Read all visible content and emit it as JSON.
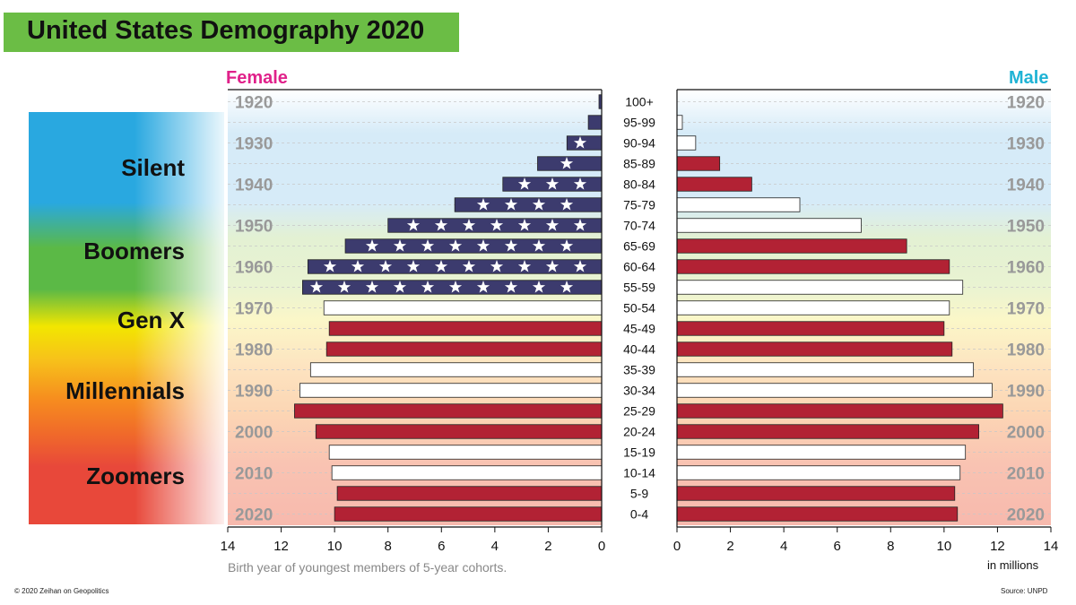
{
  "title": "United States Demography 2020",
  "female_label": "Female",
  "male_label": "Male",
  "footer_left": "© 2020 Zeihan on Geopolitics",
  "footer_right": "Source: UNPD",
  "birth_year_note": "Birth year of youngest members of 5-year cohorts.",
  "unit_label": "in millions",
  "generations": [
    {
      "name": "Silent",
      "color": "#29a8e0"
    },
    {
      "name": "Boomers",
      "color": "#5bb946"
    },
    {
      "name": "Gen X",
      "color": "#f2e600"
    },
    {
      "name": "Millennials",
      "color": "#f68b1f"
    },
    {
      "name": "Zoomers",
      "color": "#e8483a"
    }
  ],
  "colors": {
    "red": "#b22234",
    "navy": "#3c3b6e",
    "white": "#ffffff"
  },
  "chart_data": {
    "type": "bar",
    "subtype": "population-pyramid",
    "title": "United States Demography 2020",
    "categories": [
      "100+",
      "95-99",
      "90-94",
      "85-89",
      "80-84",
      "75-79",
      "70-74",
      "65-69",
      "60-64",
      "55-59",
      "50-54",
      "45-49",
      "40-44",
      "35-39",
      "30-34",
      "25-29",
      "20-24",
      "15-19",
      "10-14",
      "5-9",
      "0-4"
    ],
    "birth_year_labels": [
      "1920",
      "1930",
      "1940",
      "1950",
      "1960",
      "1970",
      "1980",
      "1990",
      "2000",
      "2010",
      "2020"
    ],
    "xlim": [
      0,
      14
    ],
    "xticks": [
      0,
      2,
      4,
      6,
      8,
      10,
      12,
      14
    ],
    "xlabel": "in millions",
    "series": [
      {
        "name": "Female",
        "values": [
          0.1,
          0.5,
          1.3,
          2.4,
          3.7,
          5.5,
          8.0,
          9.6,
          11.0,
          11.2,
          10.4,
          10.2,
          10.3,
          10.9,
          11.3,
          11.5,
          10.7,
          10.2,
          10.1,
          9.9,
          10.0
        ]
      },
      {
        "name": "Male",
        "values": [
          0.0,
          0.2,
          0.7,
          1.6,
          2.8,
          4.6,
          6.9,
          8.6,
          10.2,
          10.7,
          10.2,
          10.0,
          10.3,
          11.1,
          11.8,
          12.2,
          11.3,
          10.8,
          10.6,
          10.4,
          10.5
        ]
      }
    ],
    "bar_styles": [
      "navy",
      "navy",
      "navy",
      "navy",
      "navy",
      "navy",
      "navy",
      "navy",
      "navy",
      "navy",
      "white",
      "red",
      "red",
      "white",
      "white",
      "red",
      "red",
      "white",
      "white",
      "red",
      "red"
    ],
    "male_bar_styles": [
      "white",
      "white",
      "white",
      "red",
      "red",
      "white",
      "white",
      "red",
      "red",
      "white",
      "white",
      "red",
      "red",
      "white",
      "white",
      "red",
      "red",
      "white",
      "white",
      "red",
      "red"
    ]
  }
}
